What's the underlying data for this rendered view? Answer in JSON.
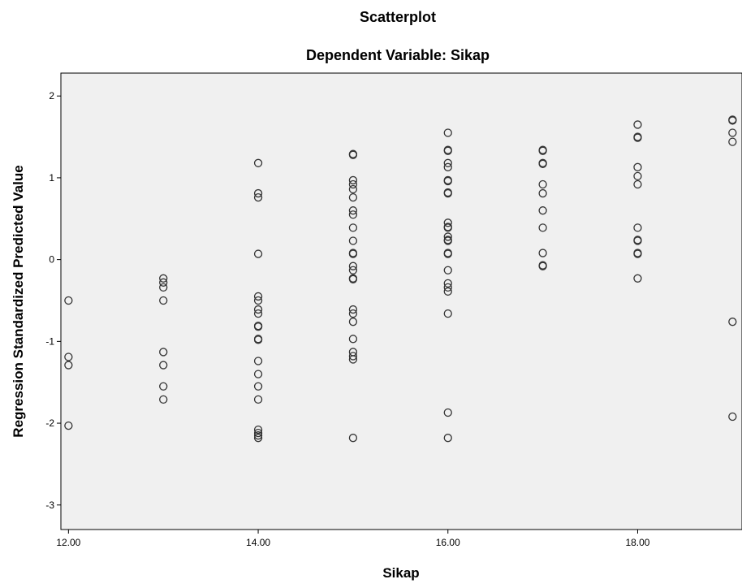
{
  "chart_data": {
    "type": "scatter",
    "title": "Scatterplot",
    "subtitle": "Dependent Variable: Sikap",
    "xlabel": "Sikap",
    "ylabel": "Regression Standardized Predicted Value",
    "xlim": [
      11.92,
      19.1
    ],
    "ylim": [
      -3.3,
      2.28
    ],
    "x_ticks": [
      12,
      14,
      16,
      18
    ],
    "x_tick_labels": [
      "12.00",
      "14.00",
      "16.00",
      "18.00"
    ],
    "y_ticks": [
      2,
      1,
      0,
      -1,
      -2,
      -3
    ],
    "y_tick_labels": [
      "2",
      "1",
      "0",
      "-1",
      "-2",
      "-3"
    ],
    "grid": false,
    "plot_background": "#f0f0f0",
    "marker_color": "#333333",
    "points": [
      [
        12,
        -0.5
      ],
      [
        12,
        -1.19
      ],
      [
        12,
        -1.29
      ],
      [
        12,
        -2.03
      ],
      [
        13,
        -0.23
      ],
      [
        13,
        -0.28
      ],
      [
        13,
        -0.34
      ],
      [
        13,
        -0.5
      ],
      [
        13,
        -1.13
      ],
      [
        13,
        -1.29
      ],
      [
        13,
        -1.55
      ],
      [
        13,
        -1.71
      ],
      [
        14,
        1.18
      ],
      [
        14,
        0.81
      ],
      [
        14,
        0.76
      ],
      [
        14,
        0.07
      ],
      [
        14,
        -0.45
      ],
      [
        14,
        -0.5
      ],
      [
        14,
        -0.61
      ],
      [
        14,
        -0.66
      ],
      [
        14,
        -0.81
      ],
      [
        14,
        -0.82
      ],
      [
        14,
        -0.97
      ],
      [
        14,
        -0.98
      ],
      [
        14,
        -1.24
      ],
      [
        14,
        -1.4
      ],
      [
        14,
        -1.55
      ],
      [
        14,
        -1.71
      ],
      [
        14,
        -2.08
      ],
      [
        14,
        -2.12
      ],
      [
        14,
        -2.15
      ],
      [
        14,
        -2.18
      ],
      [
        15,
        1.29
      ],
      [
        15,
        1.28
      ],
      [
        15,
        0.97
      ],
      [
        15,
        0.92
      ],
      [
        15,
        0.86
      ],
      [
        15,
        0.76
      ],
      [
        15,
        0.6
      ],
      [
        15,
        0.55
      ],
      [
        15,
        0.39
      ],
      [
        15,
        0.23
      ],
      [
        15,
        0.08
      ],
      [
        15,
        0.07
      ],
      [
        15,
        -0.08
      ],
      [
        15,
        -0.13
      ],
      [
        15,
        -0.23
      ],
      [
        15,
        -0.24
      ],
      [
        15,
        -0.61
      ],
      [
        15,
        -0.66
      ],
      [
        15,
        -0.76
      ],
      [
        15,
        -0.97
      ],
      [
        15,
        -1.13
      ],
      [
        15,
        -1.18
      ],
      [
        15,
        -1.22
      ],
      [
        15,
        -2.18
      ],
      [
        16,
        1.55
      ],
      [
        16,
        1.34
      ],
      [
        16,
        1.33
      ],
      [
        16,
        1.18
      ],
      [
        16,
        1.13
      ],
      [
        16,
        0.97
      ],
      [
        16,
        0.96
      ],
      [
        16,
        0.82
      ],
      [
        16,
        0.81
      ],
      [
        16,
        0.45
      ],
      [
        16,
        0.4
      ],
      [
        16,
        0.39
      ],
      [
        16,
        0.28
      ],
      [
        16,
        0.24
      ],
      [
        16,
        0.23
      ],
      [
        16,
        0.08
      ],
      [
        16,
        0.07
      ],
      [
        16,
        -0.13
      ],
      [
        16,
        -0.29
      ],
      [
        16,
        -0.34
      ],
      [
        16,
        -0.39
      ],
      [
        16,
        -0.66
      ],
      [
        16,
        -1.87
      ],
      [
        16,
        -2.18
      ],
      [
        17,
        1.34
      ],
      [
        17,
        1.33
      ],
      [
        17,
        1.18
      ],
      [
        17,
        1.17
      ],
      [
        17,
        0.92
      ],
      [
        17,
        0.81
      ],
      [
        17,
        0.6
      ],
      [
        17,
        0.39
      ],
      [
        17,
        0.08
      ],
      [
        17,
        -0.07
      ],
      [
        17,
        -0.08
      ],
      [
        18,
        1.65
      ],
      [
        18,
        1.5
      ],
      [
        18,
        1.49
      ],
      [
        18,
        1.13
      ],
      [
        18,
        1.02
      ],
      [
        18,
        0.92
      ],
      [
        18,
        0.39
      ],
      [
        18,
        0.24
      ],
      [
        18,
        0.23
      ],
      [
        18,
        0.08
      ],
      [
        18,
        0.07
      ],
      [
        18,
        -0.23
      ],
      [
        19,
        1.71
      ],
      [
        19,
        1.7
      ],
      [
        19,
        1.55
      ],
      [
        19,
        1.44
      ],
      [
        19,
        -0.76
      ],
      [
        19,
        -1.92
      ]
    ]
  }
}
